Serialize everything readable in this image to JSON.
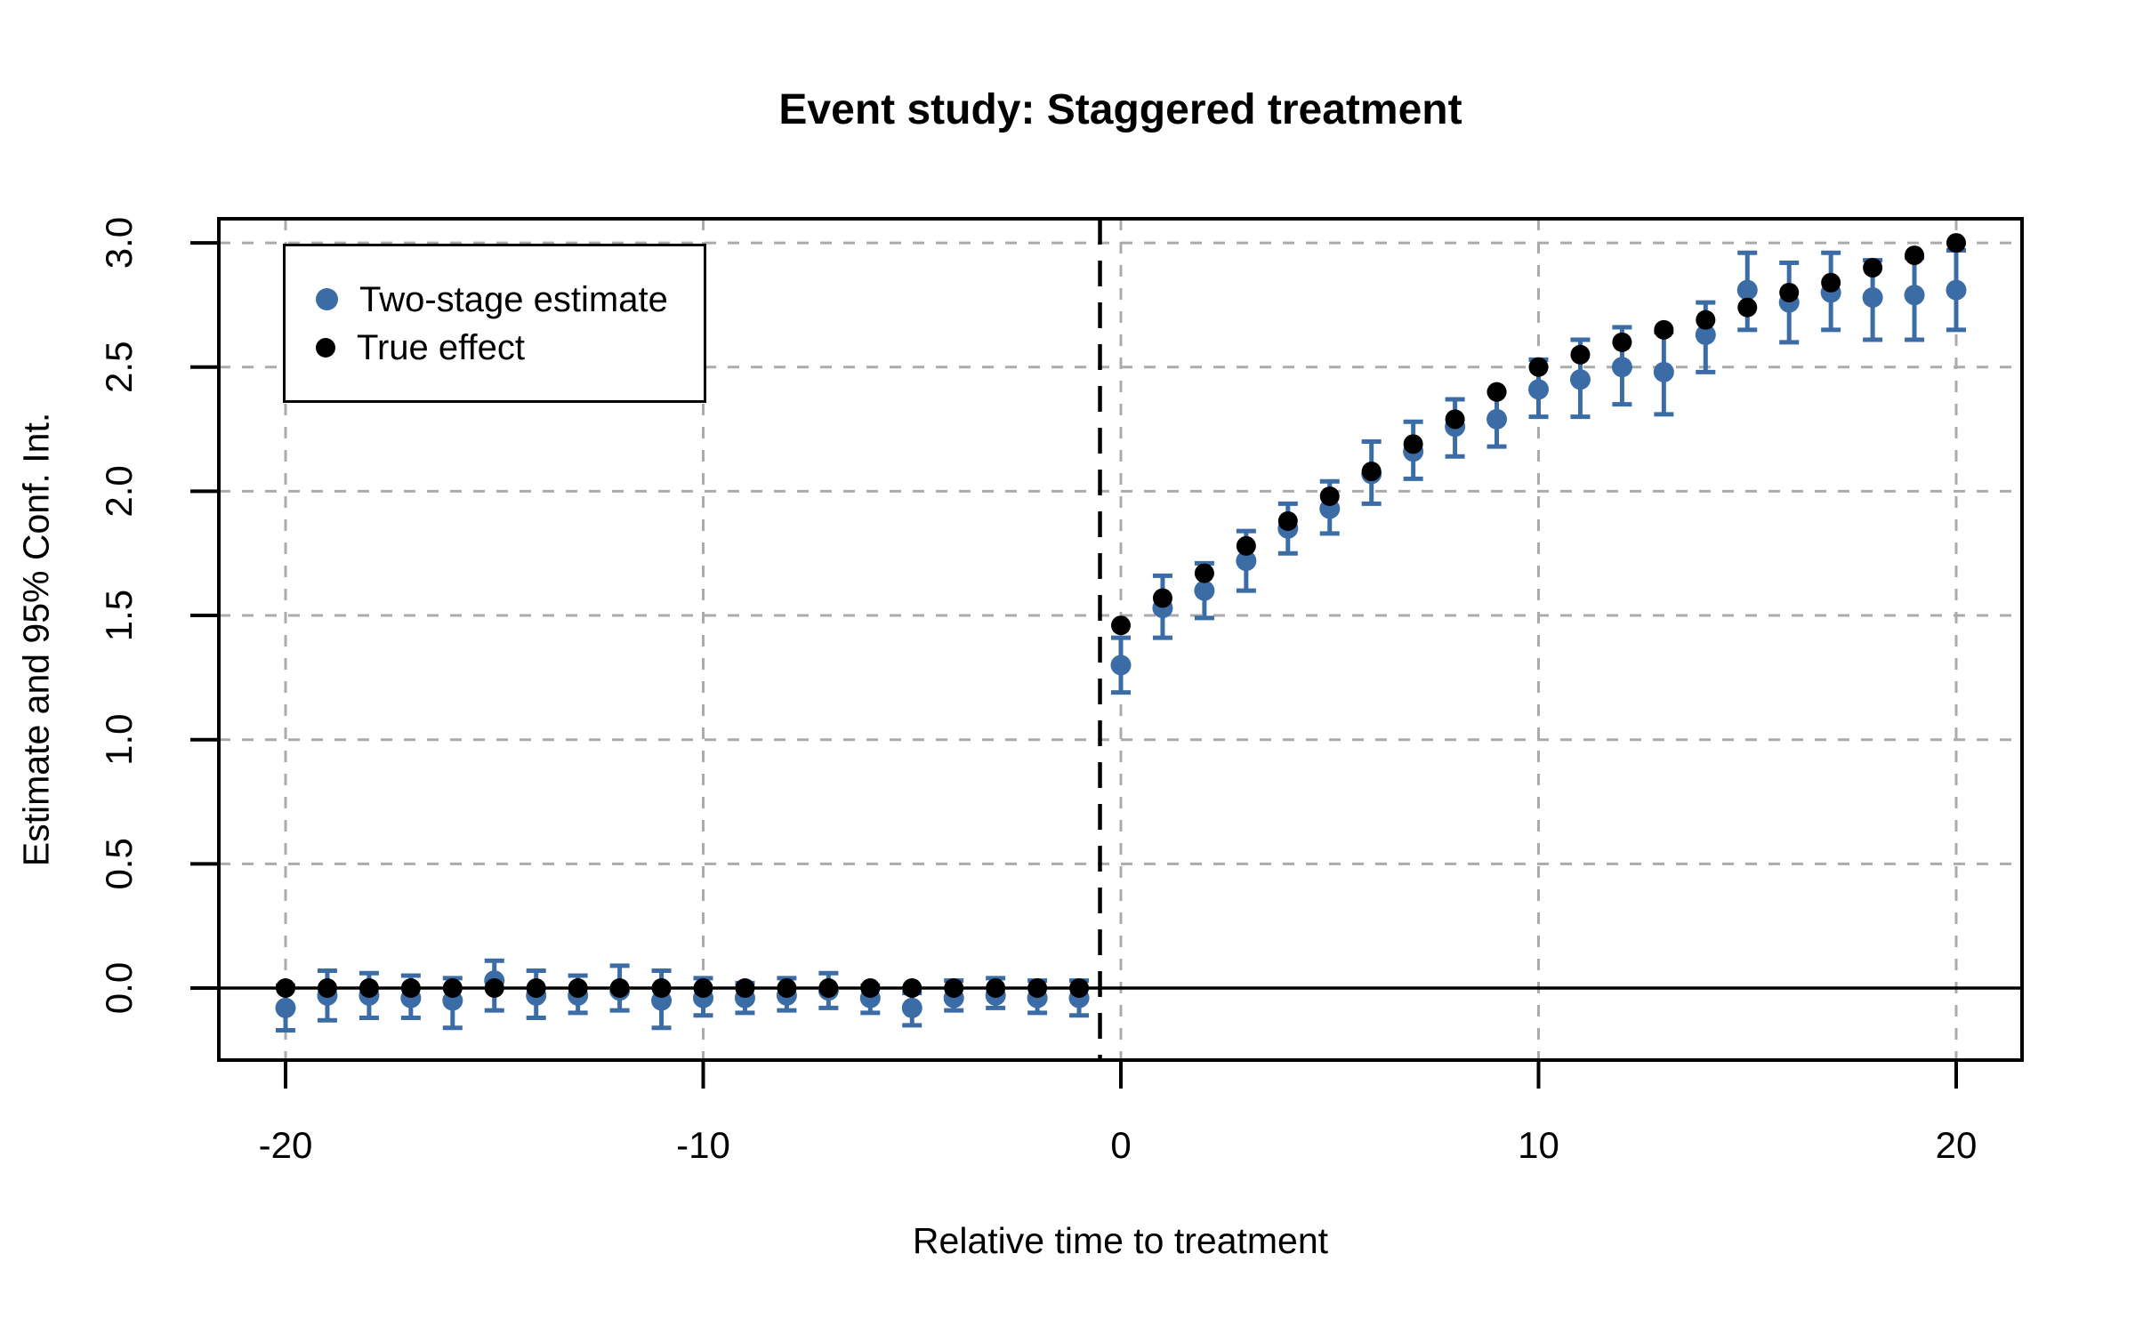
{
  "title": "Event study: Staggered treatment",
  "x_axis": {
    "label": "Relative time to treatment",
    "ticks": [
      -20,
      -10,
      0,
      10,
      20
    ],
    "tick_labels": [
      "-20",
      "-10",
      "0",
      "10",
      "20"
    ]
  },
  "y_axis": {
    "label": "Estimate and 95% Conf. Int.",
    "ticks": [
      0.0,
      0.5,
      1.0,
      1.5,
      2.0,
      2.5,
      3.0
    ],
    "tick_labels": [
      "0.0",
      "0.5",
      "1.0",
      "1.5",
      "2.0",
      "2.5",
      "3.0"
    ]
  },
  "legend": {
    "items": [
      {
        "label": "Two-stage estimate",
        "color": "#3B6CA5",
        "marker": "dot"
      },
      {
        "label": "True effect",
        "color": "#000000",
        "marker": "dot"
      }
    ]
  },
  "colors": {
    "estimate": "#3B6CA5",
    "true_effect": "#000000",
    "gridline": "#ABABAB",
    "frame": "#000000",
    "background": "#FFFFFF"
  },
  "chart_data": {
    "type": "scatter",
    "title": "Event study: Staggered treatment",
    "xlabel": "Relative time to treatment",
    "ylabel": "Estimate and 95% Conf. Int.",
    "grid": true,
    "legend_position": "top-left",
    "xlim": [
      -21.6,
      21.6
    ],
    "ylim": [
      -0.29,
      3.1
    ],
    "reference_lines": {
      "vline_x": -0.5,
      "hline_y": 0
    },
    "x": [
      -20,
      -19,
      -18,
      -17,
      -16,
      -15,
      -14,
      -13,
      -12,
      -11,
      -10,
      -9,
      -8,
      -7,
      -6,
      -5,
      -4,
      -3,
      -2,
      -1,
      0,
      1,
      2,
      3,
      4,
      5,
      6,
      7,
      8,
      9,
      10,
      11,
      12,
      13,
      14,
      15,
      16,
      17,
      18,
      19,
      20
    ],
    "series": [
      {
        "name": "Two-stage estimate",
        "values": [
          -0.08,
          -0.03,
          -0.03,
          -0.04,
          -0.05,
          0.03,
          -0.03,
          -0.03,
          -0.01,
          -0.05,
          -0.04,
          -0.04,
          -0.03,
          -0.01,
          -0.04,
          -0.08,
          -0.04,
          -0.03,
          -0.04,
          -0.04,
          1.3,
          1.53,
          1.6,
          1.72,
          1.85,
          1.93,
          2.07,
          2.16,
          2.26,
          2.29,
          2.41,
          2.45,
          2.5,
          2.48,
          2.63,
          2.81,
          2.76,
          2.8,
          2.78,
          2.79,
          2.81
        ],
        "ci_low": [
          -0.17,
          -0.13,
          -0.12,
          -0.12,
          -0.16,
          -0.09,
          -0.12,
          -0.1,
          -0.09,
          -0.16,
          -0.11,
          -0.1,
          -0.09,
          -0.08,
          -0.1,
          -0.15,
          -0.09,
          -0.08,
          -0.1,
          -0.11,
          1.19,
          1.41,
          1.49,
          1.6,
          1.75,
          1.83,
          1.95,
          2.05,
          2.14,
          2.18,
          2.3,
          2.3,
          2.35,
          2.31,
          2.48,
          2.65,
          2.6,
          2.65,
          2.61,
          2.61,
          2.65
        ],
        "ci_high": [
          0.01,
          0.07,
          0.06,
          0.05,
          0.04,
          0.11,
          0.07,
          0.05,
          0.09,
          0.07,
          0.04,
          0.02,
          0.04,
          0.06,
          0.01,
          -0.02,
          0.03,
          0.04,
          0.03,
          0.03,
          1.41,
          1.66,
          1.71,
          1.84,
          1.95,
          2.04,
          2.2,
          2.28,
          2.37,
          2.4,
          2.53,
          2.61,
          2.66,
          2.64,
          2.76,
          2.96,
          2.92,
          2.96,
          2.93,
          2.94,
          2.97
        ]
      },
      {
        "name": "True effect",
        "values": [
          0,
          0,
          0,
          0,
          0,
          0,
          0,
          0,
          0,
          0,
          0,
          0,
          0,
          0,
          0,
          0,
          0,
          0,
          0,
          0,
          1.46,
          1.57,
          1.67,
          1.78,
          1.88,
          1.98,
          2.08,
          2.19,
          2.29,
          2.4,
          2.5,
          2.55,
          2.6,
          2.65,
          2.69,
          2.74,
          2.8,
          2.84,
          2.9,
          2.95,
          3.0
        ]
      }
    ]
  }
}
